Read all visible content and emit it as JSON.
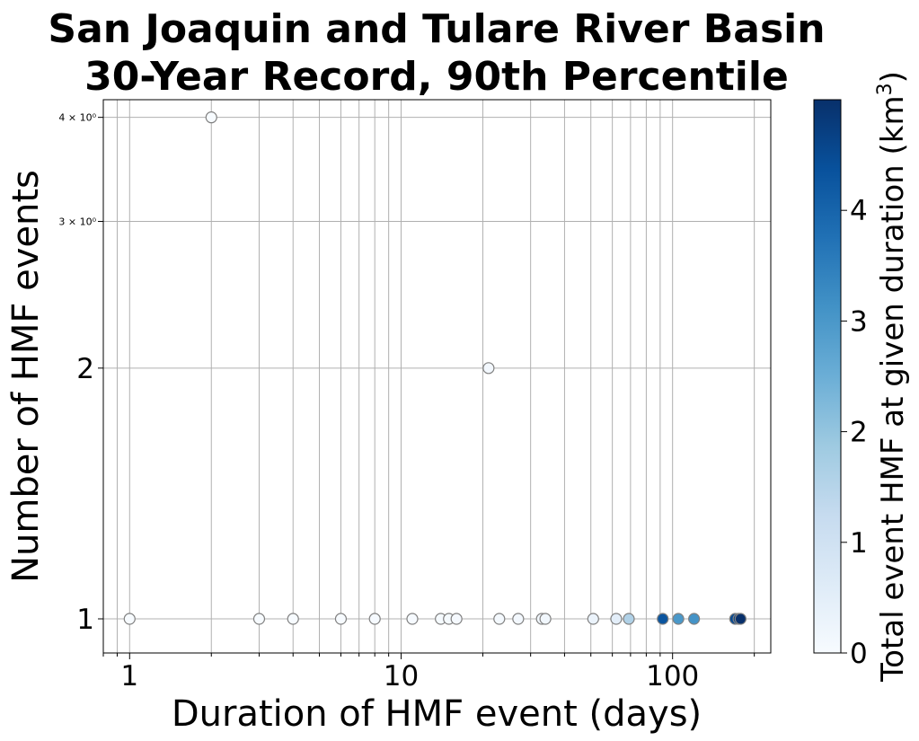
{
  "chart_data": {
    "type": "scatter",
    "title_line1": "San Joaquin and Tulare River Basin",
    "title_line2": "30-Year Record, 90th Percentile",
    "xlabel": "Duration of HMF event (days)",
    "ylabel": "Number of HMF events",
    "x_scale": "log",
    "y_scale": "log",
    "xlim": [
      0.8,
      230
    ],
    "ylim": [
      0.91,
      4.2
    ],
    "grid": true,
    "x_ticks": [
      {
        "value": 1,
        "label": "1"
      },
      {
        "value": 10,
        "label": "10"
      },
      {
        "value": 100,
        "label": "100"
      }
    ],
    "y_major_ticks": [
      {
        "value": 1,
        "label": "1"
      },
      {
        "value": 2,
        "label": "2"
      }
    ],
    "y_minor_ticks": [
      {
        "value": 3,
        "label": "3 × 10⁰"
      },
      {
        "value": 4,
        "label": "4 × 10⁰"
      }
    ],
    "points": [
      {
        "x": 1,
        "y": 1,
        "c": 0.0
      },
      {
        "x": 2,
        "y": 4,
        "c": 0.0
      },
      {
        "x": 3,
        "y": 1,
        "c": 0.0
      },
      {
        "x": 4,
        "y": 1,
        "c": 0.0
      },
      {
        "x": 6,
        "y": 1,
        "c": 0.0
      },
      {
        "x": 8,
        "y": 1,
        "c": 0.02
      },
      {
        "x": 11,
        "y": 1,
        "c": 0.03
      },
      {
        "x": 14,
        "y": 1,
        "c": 0.04
      },
      {
        "x": 15,
        "y": 1,
        "c": 0.05
      },
      {
        "x": 16,
        "y": 1,
        "c": 0.06
      },
      {
        "x": 21,
        "y": 2,
        "c": 0.1
      },
      {
        "x": 23,
        "y": 1,
        "c": 0.08
      },
      {
        "x": 27,
        "y": 1,
        "c": 0.1
      },
      {
        "x": 33,
        "y": 1,
        "c": 0.12
      },
      {
        "x": 34,
        "y": 1,
        "c": 0.14
      },
      {
        "x": 51,
        "y": 1,
        "c": 0.3
      },
      {
        "x": 62,
        "y": 1,
        "c": 0.5
      },
      {
        "x": 69,
        "y": 1,
        "c": 1.6
      },
      {
        "x": 92,
        "y": 1,
        "c": 4.3
      },
      {
        "x": 105,
        "y": 1,
        "c": 3.0
      },
      {
        "x": 120,
        "y": 1,
        "c": 3.1
      },
      {
        "x": 170,
        "y": 1,
        "c": 4.5
      },
      {
        "x": 175,
        "y": 1,
        "c": 4.7
      },
      {
        "x": 178,
        "y": 1,
        "c": 5.0
      }
    ],
    "colorbar": {
      "label_main": "Total event HMF at given duration (km",
      "label_sup": "3",
      "label_end": ")",
      "min": 0,
      "max": 5.0,
      "ticks": [
        {
          "value": 0,
          "label": "0"
        },
        {
          "value": 1,
          "label": "1"
        },
        {
          "value": 2,
          "label": "2"
        },
        {
          "value": 3,
          "label": "3"
        },
        {
          "value": 4,
          "label": "4"
        }
      ],
      "cmap_stops": [
        "#f7fbff",
        "#deebf7",
        "#c6dbef",
        "#9ecae1",
        "#6baed6",
        "#4292c6",
        "#2171b5",
        "#08519c",
        "#08306b"
      ]
    }
  }
}
